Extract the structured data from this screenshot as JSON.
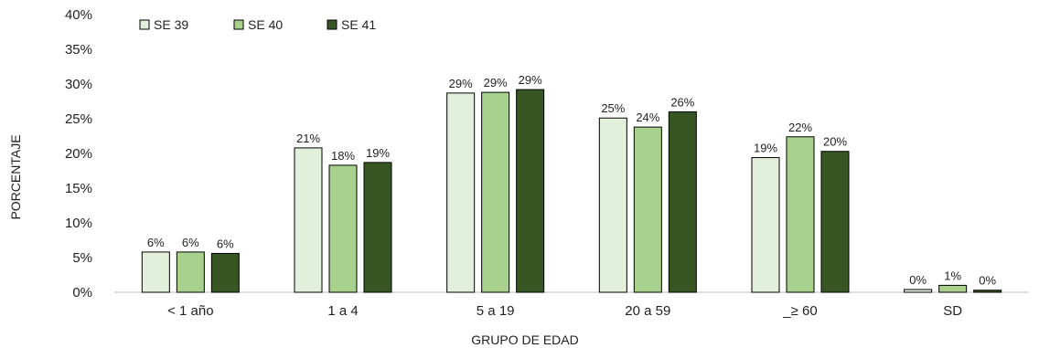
{
  "chart_data": {
    "type": "bar",
    "title": "",
    "xlabel": "GRUPO DE EDAD",
    "ylabel": "PORCENTAJE",
    "ylim": [
      0,
      40
    ],
    "yticks": [
      "0%",
      "5%",
      "10%",
      "15%",
      "20%",
      "25%",
      "30%",
      "35%",
      "40%"
    ],
    "grid": false,
    "legend_position": "top-left",
    "categories": [
      "< 1 año",
      "1 a 4",
      "5 a 19",
      "20 a 59",
      "_≥ 60",
      "SD"
    ],
    "series": [
      {
        "name": "SE 39",
        "color": "#e2efda",
        "values": [
          5.8,
          20.8,
          28.7,
          25.1,
          19.4,
          0.4
        ],
        "labels": [
          "6%",
          "21%",
          "29%",
          "25%",
          "19%",
          "0%"
        ]
      },
      {
        "name": "SE 40",
        "color": "#a9d18e",
        "values": [
          5.8,
          18.3,
          28.8,
          23.8,
          22.4,
          1.0
        ],
        "labels": [
          "6%",
          "18%",
          "29%",
          "24%",
          "22%",
          "1%"
        ]
      },
      {
        "name": "SE 41",
        "color": "#375623",
        "values": [
          5.6,
          18.7,
          29.2,
          26.0,
          20.3,
          0.3
        ],
        "labels": [
          "6%",
          "19%",
          "29%",
          "26%",
          "20%",
          "0%"
        ]
      }
    ]
  }
}
